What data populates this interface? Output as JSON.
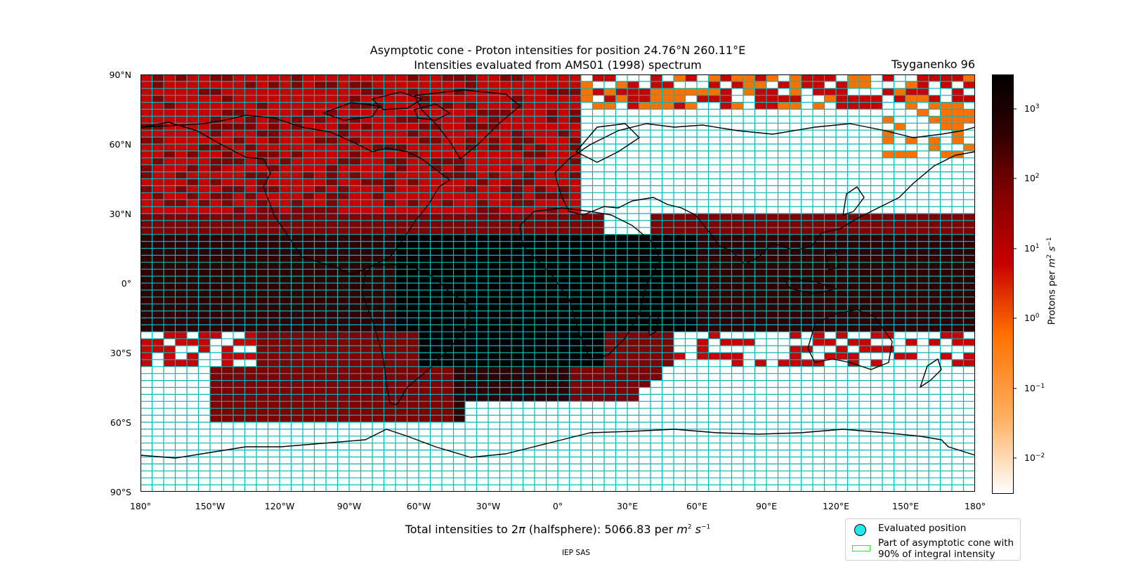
{
  "title": {
    "line1": "Asymptotic cone - Proton intensities for position 24.76°N 260.11°E",
    "line2": "Intensities evaluated from AMS01 (1998) spectrum"
  },
  "model_label": "Tsyganenko 96",
  "map": {
    "lat_ticks": [
      "90°N",
      "60°N",
      "30°N",
      "0°",
      "30°S",
      "60°S",
      "90°S"
    ],
    "lon_ticks": [
      "180°",
      "150°W",
      "120°W",
      "90°W",
      "60°W",
      "30°W",
      "0°",
      "30°E",
      "60°E",
      "90°E",
      "120°E",
      "150°E",
      "180°"
    ],
    "grid_color": "#00b8b8",
    "coast_color": "#000000"
  },
  "colorbar": {
    "label_prefix": "Protons per ",
    "label_unit": "m",
    "label_exp1": "2",
    "label_s": " s",
    "label_exp2": "−1",
    "ticks": [
      {
        "base": "10",
        "exp": "3"
      },
      {
        "base": "10",
        "exp": "2"
      },
      {
        "base": "10",
        "exp": "1"
      },
      {
        "base": "10",
        "exp": "0"
      },
      {
        "base": "10",
        "exp": "−1"
      },
      {
        "base": "10",
        "exp": "−2"
      }
    ],
    "scale": "log",
    "colormap": [
      "#ffffff",
      "#ffb060",
      "#ff7000",
      "#c80000",
      "#800000",
      "#300000",
      "#000000"
    ]
  },
  "total": {
    "prefix": "Total intensities to 2",
    "pi": "π",
    "mid": " (halfsphere): 5066.83 per ",
    "unit": "m",
    "exp1": "2",
    "s": " s",
    "exp2": "−1"
  },
  "legend": {
    "evaluated": "Evaluated position",
    "cone_line1": "Part of asymptotic cone with",
    "cone_line2": "90% of integral intensity",
    "marker_color": "#22e9f0",
    "cone_color": "#22ee22"
  },
  "credit": "IEP SAS"
}
